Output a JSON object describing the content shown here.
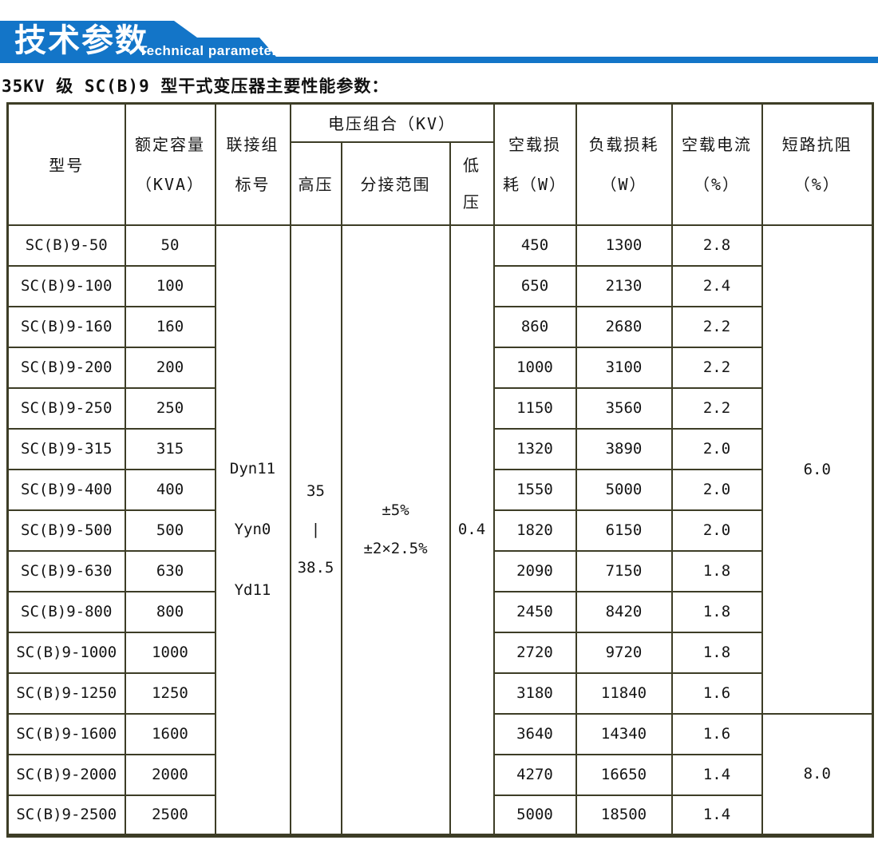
{
  "banner": {
    "title": "技术参数",
    "subtitle": "Technical parameter",
    "color": "#1375C8"
  },
  "caption": "35KV 级 SC(B)9 型干式变压器主要性能参数：",
  "table": {
    "headers": {
      "model": "型号",
      "capacity": "额定容量\n（KVA）",
      "vector_group": "联接组\n标号",
      "voltage_combo": "电压组合（KV）",
      "hv": "高压",
      "tap_range": "分接范围",
      "lv": "低\n压",
      "no_load_loss": "空载损\n耗（W）",
      "load_loss": "负载损耗\n（W）",
      "no_load_current": "空载电流\n（%）",
      "impedance": "短路抗阻\n（%）"
    },
    "merged": {
      "vector_group": "Dyn11\n\nYyn0\n\nYd11",
      "hv": "35\n|\n38.5",
      "tap_range": "±5%\n±2×2.5%",
      "lv": "0.4",
      "impedance_top": "6.0",
      "impedance_bottom": "8.0"
    },
    "rows": [
      {
        "model": "SC(B)9-50",
        "capacity": "50",
        "no_load_loss": "450",
        "load_loss": "1300",
        "no_load_current": "2.8"
      },
      {
        "model": "SC(B)9-100",
        "capacity": "100",
        "no_load_loss": "650",
        "load_loss": "2130",
        "no_load_current": "2.4"
      },
      {
        "model": "SC(B)9-160",
        "capacity": "160",
        "no_load_loss": "860",
        "load_loss": "2680",
        "no_load_current": "2.2"
      },
      {
        "model": "SC(B)9-200",
        "capacity": "200",
        "no_load_loss": "1000",
        "load_loss": "3100",
        "no_load_current": "2.2"
      },
      {
        "model": "SC(B)9-250",
        "capacity": "250",
        "no_load_loss": "1150",
        "load_loss": "3560",
        "no_load_current": "2.2"
      },
      {
        "model": "SC(B)9-315",
        "capacity": "315",
        "no_load_loss": "1320",
        "load_loss": "3890",
        "no_load_current": "2.0"
      },
      {
        "model": "SC(B)9-400",
        "capacity": "400",
        "no_load_loss": "1550",
        "load_loss": "5000",
        "no_load_current": "2.0"
      },
      {
        "model": "SC(B)9-500",
        "capacity": "500",
        "no_load_loss": "1820",
        "load_loss": "6150",
        "no_load_current": "2.0"
      },
      {
        "model": "SC(B)9-630",
        "capacity": "630",
        "no_load_loss": "2090",
        "load_loss": "7150",
        "no_load_current": "1.8"
      },
      {
        "model": "SC(B)9-800",
        "capacity": "800",
        "no_load_loss": "2450",
        "load_loss": "8420",
        "no_load_current": "1.8"
      },
      {
        "model": "SC(B)9-1000",
        "capacity": "1000",
        "no_load_loss": "2720",
        "load_loss": "9720",
        "no_load_current": "1.8"
      },
      {
        "model": "SC(B)9-1250",
        "capacity": "1250",
        "no_load_loss": "3180",
        "load_loss": "11840",
        "no_load_current": "1.6"
      },
      {
        "model": "SC(B)9-1600",
        "capacity": "1600",
        "no_load_loss": "3640",
        "load_loss": "14340",
        "no_load_current": "1.6"
      },
      {
        "model": "SC(B)9-2000",
        "capacity": "2000",
        "no_load_loss": "4270",
        "load_loss": "16650",
        "no_load_current": "1.4"
      },
      {
        "model": "SC(B)9-2500",
        "capacity": "2500",
        "no_load_loss": "5000",
        "load_loss": "18500",
        "no_load_current": "1.4"
      }
    ]
  }
}
